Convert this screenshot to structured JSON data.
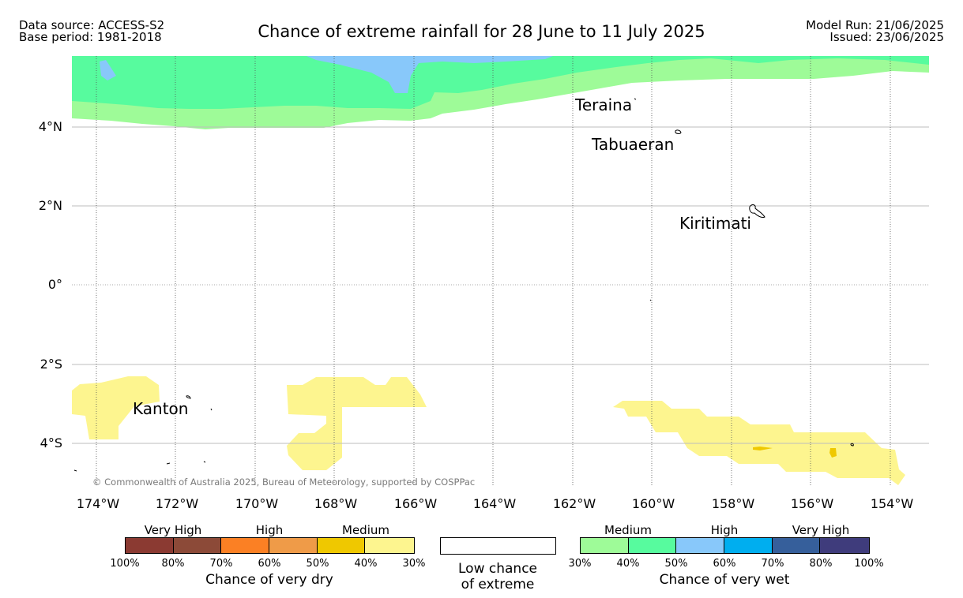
{
  "header": {
    "data_source": "Data source: ACCESS-S2",
    "base_period": "Base period: 1981-2018",
    "title": "Chance of extreme rainfall for 28 June to 11 July 2025",
    "model_run": "Model Run: 21/06/2025",
    "issued": "Issued: 23/06/2025"
  },
  "map": {
    "y_ticks": [
      "4°N",
      "2°N",
      "0°",
      "2°S",
      "4°S"
    ],
    "x_ticks": [
      "174°W",
      "172°W",
      "170°W",
      "168°W",
      "166°W",
      "164°W",
      "162°W",
      "160°W",
      "158°W",
      "156°W",
      "154°W"
    ],
    "places": {
      "teraina": "Teraina",
      "tabuaeran": "Tabuaeran",
      "kiritimati": "Kiritimati",
      "kanton": "Kanton"
    },
    "copyright": "© Commonwealth of Australia 2025, Bureau of Meteorology, supported by COSPPac",
    "colors": {
      "wet_medium_low": "#9efb98",
      "wet_medium_high": "#57fb9e",
      "wet_high_low": "#88c8fa",
      "dry_medium_low": "#fdf58f",
      "dry_medium_high": "#efc800"
    }
  },
  "legend": {
    "dry": {
      "headings": [
        "Very High",
        "High",
        "Medium"
      ],
      "ticks": [
        "100%",
        "80%",
        "70%",
        "60%",
        "50%",
        "40%",
        "30%"
      ],
      "title": "Chance of very dry",
      "colors": [
        "#8b3a32",
        "#8c4a38",
        "#fb8024",
        "#ef9b48",
        "#efc800",
        "#fdf58f"
      ]
    },
    "low": {
      "line1": "Low chance",
      "line2": "of extreme"
    },
    "wet": {
      "headings": [
        "Medium",
        "High",
        "Very High"
      ],
      "ticks": [
        "30%",
        "40%",
        "50%",
        "60%",
        "70%",
        "80%",
        "100%"
      ],
      "title": "Chance of very wet",
      "colors": [
        "#9efb98",
        "#57fb9e",
        "#88c8fa",
        "#00aeef",
        "#365f9b",
        "#3f3c7c"
      ]
    }
  }
}
